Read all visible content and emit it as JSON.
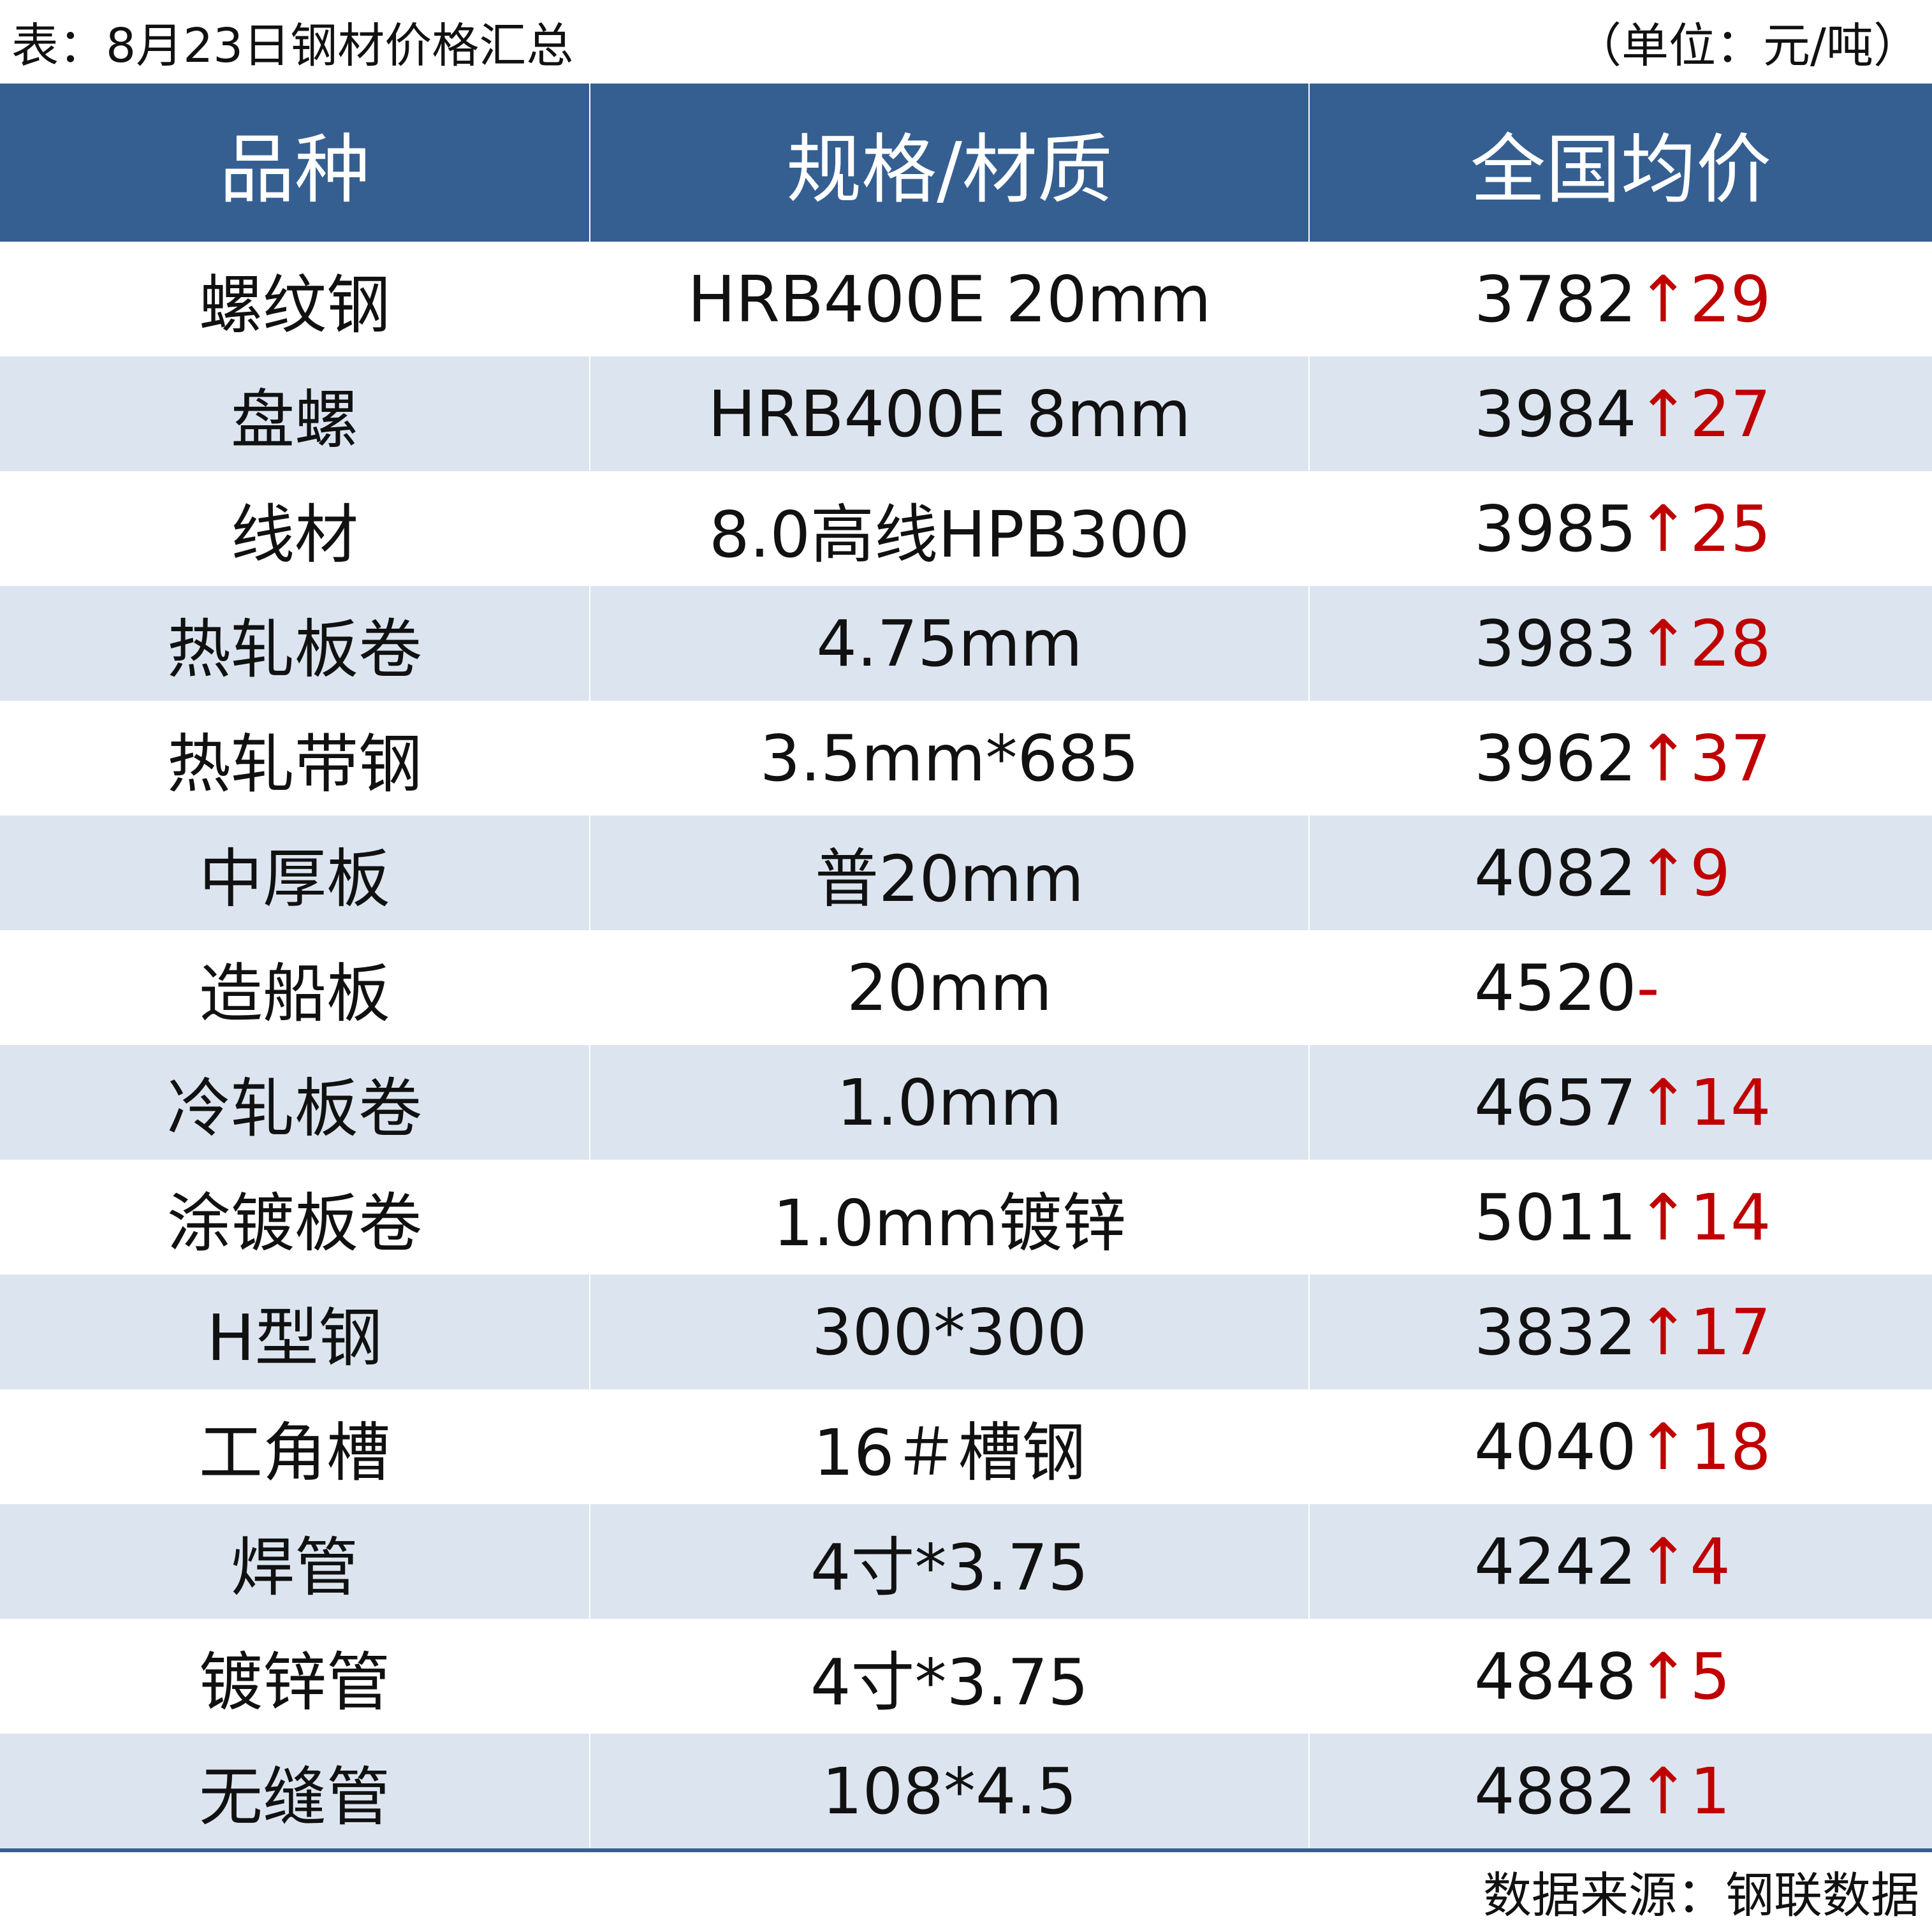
{
  "header": {
    "title": "表：8月23日钢材价格汇总",
    "unit": "（单位：元/吨）"
  },
  "table": {
    "columns": [
      "品种",
      "规格/材质",
      "全国均价"
    ],
    "rows": [
      {
        "product": "螺纹钢",
        "spec": "HRB400E 20mm",
        "price": 3782,
        "change": "↑29"
      },
      {
        "product": "盘螺",
        "spec": "HRB400E 8mm",
        "price": 3984,
        "change": "↑27"
      },
      {
        "product": "线材",
        "spec": "8.0高线HPB300",
        "price": 3985,
        "change": "↑25"
      },
      {
        "product": "热轧板卷",
        "spec": "4.75mm",
        "price": 3983,
        "change": "↑28"
      },
      {
        "product": "热轧带钢",
        "spec": "3.5mm*685",
        "price": 3962,
        "change": "↑37"
      },
      {
        "product": "中厚板",
        "spec": "普20mm",
        "price": 4082,
        "change": "↑9"
      },
      {
        "product": "造船板",
        "spec": "20mm",
        "price": 4520,
        "change": "-"
      },
      {
        "product": "冷轧板卷",
        "spec": "1.0mm",
        "price": 4657,
        "change": "↑14"
      },
      {
        "product": "涂镀板卷",
        "spec": "1.0mm镀锌",
        "price": 5011,
        "change": "↑14"
      },
      {
        "product": "H型钢",
        "spec": "300*300",
        "price": 3832,
        "change": "↑17"
      },
      {
        "product": "工角槽",
        "spec": "16＃槽钢",
        "price": 4040,
        "change": "↑18"
      },
      {
        "product": "焊管",
        "spec": "4寸*3.75",
        "price": 4242,
        "change": "↑4"
      },
      {
        "product": "镀锌管",
        "spec": "4寸*3.75",
        "price": 4848,
        "change": "↑5"
      },
      {
        "product": "无缝管",
        "spec": "108*4.5",
        "price": 4882,
        "change": "↑1"
      }
    ]
  },
  "footer": {
    "source": "数据来源：钢联数据"
  }
}
